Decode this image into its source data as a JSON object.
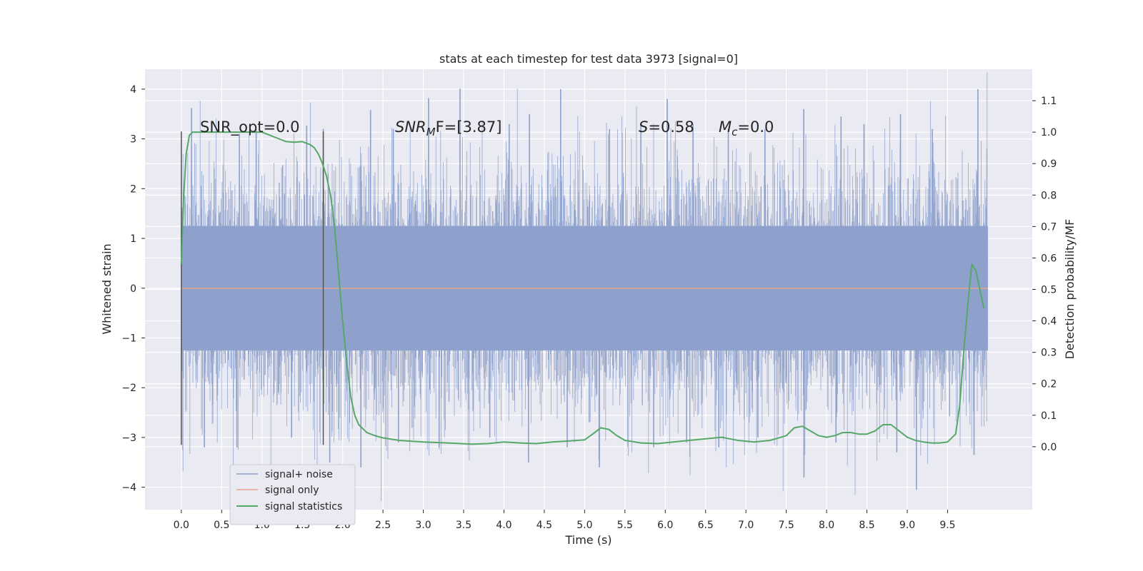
{
  "chart_data": {
    "type": "line",
    "title": "stats at each timestep for test data 3973 [signal=0]",
    "xlabel": "Time (s)",
    "ylabel_left": "Whitened strain",
    "ylabel_right": "Detection probability/MF",
    "xlim": [
      -0.45,
      10.55
    ],
    "ylim_left": [
      -4.45,
      4.4
    ],
    "ylim_right": [
      -0.2,
      1.2
    ],
    "x_ticks": [
      "0.0",
      "0.5",
      "1.0",
      "1.5",
      "2.0",
      "2.5",
      "3.0",
      "3.5",
      "4.0",
      "4.5",
      "5.0",
      "5.5",
      "6.0",
      "6.5",
      "7.0",
      "7.5",
      "8.0",
      "8.5",
      "9.0",
      "9.5"
    ],
    "y_left_ticks": [
      "4",
      "3",
      "2",
      "1",
      "0",
      "−1",
      "−2",
      "−3",
      "−4"
    ],
    "y_right_ticks": [
      "1.1",
      "1.0",
      "0.9",
      "0.8",
      "0.7",
      "0.6",
      "0.5",
      "0.4",
      "0.3",
      "0.2",
      "0.1",
      "0.0"
    ],
    "grid": true,
    "legend_placement": "lower-left",
    "annotations": {
      "snr_opt": "SNR_opt=0.0",
      "snr_mf_base": "SNR",
      "snr_mf_sub": "M",
      "snr_mf_tail": "F=[3.87]",
      "s_sym": "S",
      "s_val": "=0.58",
      "mc_sym": "M",
      "mc_sub": "c",
      "mc_val": "=0.0"
    },
    "vlines_x": [
      0.0,
      1.76
    ],
    "vlines_range": [
      -3.15,
      3.15
    ],
    "series": [
      {
        "name": "signal+ noise",
        "color": "#8da0cb",
        "x_range": [
          0.0,
          10.0
        ],
        "core_amplitude": 1.25,
        "peak_max": [
          3.62,
          3.1,
          3.2,
          3.27,
          3.2,
          3.58,
          3.2,
          3.82,
          4.01,
          3.3,
          3.5,
          4.0,
          3.2,
          3.3,
          3.8,
          3.3,
          3.2,
          3.2,
          3.6,
          3.45,
          3.3,
          3.5,
          3.2,
          4.0
        ],
        "peak_min": [
          -3.2,
          -3.2,
          -3.0,
          -3.5,
          -3.6,
          -3.1,
          -3.2,
          -3.0,
          -3.5,
          -3.2,
          -3.6,
          -3.2,
          -3.1,
          -3.2,
          -3.0,
          -3.8,
          -3.1,
          -3.3,
          -4.05,
          -3.35
        ]
      },
      {
        "name": "signal only",
        "color": "#e8a58d",
        "x": [
          0.0,
          10.0
        ],
        "y": [
          0.0,
          0.0
        ]
      },
      {
        "name": "signal statistics",
        "color": "#55a868",
        "axis": "right",
        "x": [
          0.0,
          0.03,
          0.06,
          0.1,
          0.14,
          0.2,
          0.3,
          0.5,
          0.8,
          1.0,
          1.1,
          1.2,
          1.3,
          1.4,
          1.5,
          1.6,
          1.65,
          1.7,
          1.75,
          1.8,
          1.85,
          1.9,
          1.95,
          2.0,
          2.05,
          2.1,
          2.15,
          2.2,
          2.3,
          2.4,
          2.5,
          2.7,
          3.0,
          3.3,
          3.6,
          3.8,
          4.0,
          4.2,
          4.4,
          4.6,
          4.8,
          5.0,
          5.1,
          5.2,
          5.3,
          5.4,
          5.5,
          5.7,
          5.9,
          6.1,
          6.3,
          6.5,
          6.7,
          6.9,
          7.1,
          7.3,
          7.5,
          7.6,
          7.7,
          7.8,
          7.9,
          8.0,
          8.1,
          8.2,
          8.3,
          8.4,
          8.5,
          8.6,
          8.7,
          8.8,
          8.9,
          9.0,
          9.1,
          9.2,
          9.3,
          9.4,
          9.5,
          9.6,
          9.65,
          9.7,
          9.75,
          9.8,
          9.85,
          9.9,
          9.95
        ],
        "y": [
          0.58,
          0.8,
          0.93,
          0.99,
          1.0,
          1.0,
          1.0,
          1.0,
          1.0,
          1.0,
          0.99,
          0.98,
          0.97,
          0.968,
          0.97,
          0.96,
          0.95,
          0.93,
          0.9,
          0.86,
          0.8,
          0.7,
          0.55,
          0.4,
          0.27,
          0.16,
          0.1,
          0.07,
          0.045,
          0.035,
          0.028,
          0.02,
          0.015,
          0.012,
          0.008,
          0.01,
          0.015,
          0.012,
          0.01,
          0.015,
          0.018,
          0.022,
          0.04,
          0.06,
          0.055,
          0.035,
          0.02,
          0.012,
          0.01,
          0.015,
          0.02,
          0.025,
          0.03,
          0.02,
          0.015,
          0.02,
          0.035,
          0.06,
          0.065,
          0.05,
          0.035,
          0.03,
          0.035,
          0.045,
          0.045,
          0.04,
          0.04,
          0.05,
          0.07,
          0.07,
          0.05,
          0.03,
          0.02,
          0.015,
          0.012,
          0.012,
          0.015,
          0.04,
          0.13,
          0.3,
          0.45,
          0.58,
          0.56,
          0.5,
          0.44
        ]
      }
    ]
  }
}
